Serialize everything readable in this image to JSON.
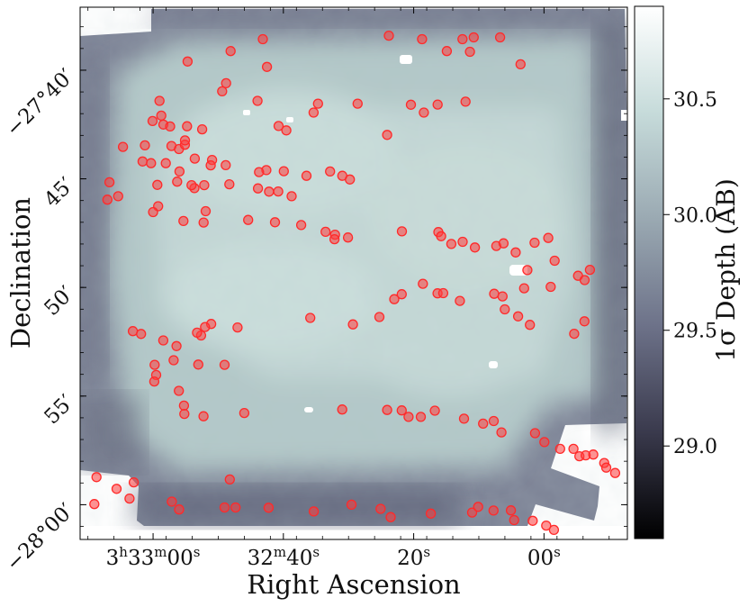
{
  "chart_data": {
    "type": "heatmap",
    "title": "",
    "xlabel": "Right Ascension",
    "ylabel": "Declination",
    "x_ticks": [
      {
        "ra_sec": 180,
        "label_parts": [
          "3",
          "h",
          "33",
          "m",
          "00",
          "s"
        ]
      },
      {
        "ra_sec": 160,
        "label_parts": [
          "32",
          "m",
          "40",
          "s"
        ]
      },
      {
        "ra_sec": 140,
        "label_parts": [
          "20",
          "s"
        ]
      },
      {
        "ra_sec": 120,
        "label_parts": [
          "00",
          "s"
        ]
      }
    ],
    "y_ticks": [
      {
        "dec_arcmin": -40,
        "label": "−27°40′"
      },
      {
        "dec_arcmin": -45,
        "label": "45′"
      },
      {
        "dec_arcmin": -50,
        "label": "50′"
      },
      {
        "dec_arcmin": -55,
        "label": "55′"
      },
      {
        "dec_arcmin": -60,
        "label": "−28°00′"
      }
    ],
    "xlim_ra_sec": [
      191.2,
      107.2
    ],
    "ylim_dec_arcmin": [
      -61.6,
      -37.1
    ],
    "colorbar": {
      "label": "1σ Depth (AB)",
      "range": [
        28.6,
        30.9
      ],
      "ticks": [
        29.0,
        29.5,
        30.0,
        30.5
      ],
      "tick_labels": [
        "29.0",
        "29.5",
        "30.0",
        "30.5"
      ],
      "colormap": "bone",
      "colors": [
        "#000000",
        "#3a3a4d",
        "#6d7289",
        "#9aa9b2",
        "#c6dbda",
        "#ffffff"
      ]
    },
    "marker_color": "#ff2a2a",
    "markers": [
      [
        163.16,
        -38.57
      ],
      [
        143.81,
        -38.41
      ],
      [
        138.71,
        -38.57
      ],
      [
        132.51,
        -38.57
      ],
      [
        130.79,
        -38.49
      ],
      [
        126.73,
        -38.49
      ],
      [
        174.71,
        -39.6
      ],
      [
        168.1,
        -39.12
      ],
      [
        162.52,
        -39.85
      ],
      [
        134.92,
        -39.12
      ],
      [
        131.37,
        -39.15
      ],
      [
        123.6,
        -39.73
      ],
      [
        168.79,
        -40.6
      ],
      [
        169.4,
        -40.97
      ],
      [
        163.97,
        -41.41
      ],
      [
        154.68,
        -41.54
      ],
      [
        148.61,
        -41.54
      ],
      [
        140.43,
        -41.59
      ],
      [
        136.32,
        -41.58
      ],
      [
        132.04,
        -41.45
      ],
      [
        179.01,
        -41.41
      ],
      [
        155.36,
        -41.95
      ],
      [
        138.44,
        -41.95
      ],
      [
        178.74,
        -42.09
      ],
      [
        180.08,
        -42.34
      ],
      [
        178.42,
        -42.5
      ],
      [
        160.73,
        -42.57
      ],
      [
        177.39,
        -42.59
      ],
      [
        174.79,
        -42.58
      ],
      [
        172.46,
        -42.72
      ],
      [
        159.55,
        -42.77
      ],
      [
        144.08,
        -42.98
      ],
      [
        181.25,
        -43.46
      ],
      [
        177.18,
        -43.49
      ],
      [
        176.03,
        -43.63
      ],
      [
        175.12,
        -43.43
      ],
      [
        184.62,
        -43.53
      ],
      [
        175.11,
        -43.23
      ],
      [
        181.61,
        -44.2
      ],
      [
        170.95,
        -44.13
      ],
      [
        173.6,
        -44.07
      ],
      [
        180.32,
        -44.28
      ],
      [
        178.05,
        -44.28
      ],
      [
        175.95,
        -44.66
      ],
      [
        168.85,
        -44.37
      ],
      [
        171.16,
        -44.38
      ],
      [
        162.62,
        -44.6
      ],
      [
        156.45,
        -44.86
      ],
      [
        159.94,
        -44.65
      ],
      [
        163.73,
        -44.69
      ],
      [
        152.84,
        -44.66
      ],
      [
        150.96,
        -44.86
      ],
      [
        149.8,
        -45.03
      ],
      [
        173.65,
        -45.43
      ],
      [
        174.1,
        -45.29
      ],
      [
        176.3,
        -45.13
      ],
      [
        179.35,
        -45.28
      ],
      [
        172.15,
        -45.29
      ],
      [
        168.29,
        -45.25
      ],
      [
        163.9,
        -45.44
      ],
      [
        162.2,
        -45.59
      ],
      [
        160.79,
        -45.58
      ],
      [
        158.73,
        -45.8
      ],
      [
        186.7,
        -45.16
      ],
      [
        185.35,
        -45.8
      ],
      [
        187.02,
        -45.96
      ],
      [
        179.22,
        -46.26
      ],
      [
        180.0,
        -46.53
      ],
      [
        171.93,
        -46.49
      ],
      [
        175.34,
        -46.94
      ],
      [
        172.25,
        -47.01
      ],
      [
        165.4,
        -46.89
      ],
      [
        161.29,
        -47.0
      ],
      [
        157.27,
        -47.13
      ],
      [
        153.52,
        -47.44
      ],
      [
        152.07,
        -47.57
      ],
      [
        152.16,
        -47.78
      ],
      [
        150.09,
        -47.7
      ],
      [
        141.81,
        -47.42
      ],
      [
        136.22,
        -47.45
      ],
      [
        135.79,
        -47.64
      ],
      [
        132.48,
        -47.9
      ],
      [
        134.23,
        -48.0
      ],
      [
        130.6,
        -48.16
      ],
      [
        127.32,
        -48.09
      ],
      [
        126.21,
        -47.97
      ],
      [
        119.34,
        -47.72
      ],
      [
        121.45,
        -47.94
      ],
      [
        124.34,
        -48.39
      ],
      [
        118.37,
        -48.77
      ],
      [
        122.55,
        -49.2
      ],
      [
        123.05,
        -50.04
      ],
      [
        118.97,
        -49.97
      ],
      [
        114.77,
        -49.46
      ],
      [
        113.76,
        -49.66
      ],
      [
        112.95,
        -49.19
      ],
      [
        138.59,
        -49.83
      ],
      [
        136.34,
        -50.27
      ],
      [
        135.47,
        -50.26
      ],
      [
        141.84,
        -50.31
      ],
      [
        142.98,
        -50.54
      ],
      [
        132.91,
        -50.62
      ],
      [
        127.65,
        -50.29
      ],
      [
        126.36,
        -50.41
      ],
      [
        126.02,
        -51.01
      ],
      [
        123.97,
        -51.33
      ],
      [
        122.16,
        -51.72
      ],
      [
        115.36,
        -52.13
      ],
      [
        113.79,
        -51.56
      ],
      [
        145.26,
        -51.36
      ],
      [
        149.33,
        -51.7
      ],
      [
        155.87,
        -51.4
      ],
      [
        167.03,
        -51.84
      ],
      [
        171.08,
        -51.68
      ],
      [
        172.02,
        -51.82
      ],
      [
        172.63,
        -52.21
      ],
      [
        173.25,
        -52.08
      ],
      [
        181.85,
        -52.14
      ],
      [
        183.11,
        -52.01
      ],
      [
        178.44,
        -52.44
      ],
      [
        176.4,
        -52.7
      ],
      [
        179.76,
        -53.56
      ],
      [
        176.84,
        -53.35
      ],
      [
        179.52,
        -54.03
      ],
      [
        173.06,
        -53.55
      ],
      [
        169.03,
        -53.56
      ],
      [
        179.81,
        -54.33
      ],
      [
        176.05,
        -54.76
      ],
      [
        175.25,
        -55.44
      ],
      [
        172.26,
        -55.93
      ],
      [
        175.2,
        -55.82
      ],
      [
        166.0,
        -55.78
      ],
      [
        150.97,
        -55.62
      ],
      [
        144.07,
        -55.64
      ],
      [
        141.84,
        -55.66
      ],
      [
        140.79,
        -55.96
      ],
      [
        138.91,
        -55.96
      ],
      [
        136.75,
        -55.67
      ],
      [
        132.28,
        -56.04
      ],
      [
        129.35,
        -56.27
      ],
      [
        127.72,
        -56.15
      ],
      [
        126.53,
        -56.67
      ],
      [
        121.38,
        -56.71
      ],
      [
        119.94,
        -57.12
      ],
      [
        117.52,
        -57.43
      ],
      [
        115.47,
        -57.43
      ],
      [
        114.56,
        -57.77
      ],
      [
        113.6,
        -57.73
      ],
      [
        112.43,
        -57.69
      ],
      [
        110.75,
        -58.08
      ],
      [
        110.44,
        -58.29
      ],
      [
        109.08,
        -58.54
      ],
      [
        168.23,
        -58.84
      ],
      [
        188.68,
        -58.73
      ],
      [
        182.96,
        -58.97
      ],
      [
        185.6,
        -59.27
      ],
      [
        183.62,
        -59.72
      ],
      [
        189.02,
        -59.97
      ],
      [
        177.12,
        -59.86
      ],
      [
        176.0,
        -60.22
      ],
      [
        169.02,
        -60.13
      ],
      [
        167.34,
        -60.13
      ],
      [
        162.27,
        -60.14
      ],
      [
        155.34,
        -60.31
      ],
      [
        149.55,
        -60.0
      ],
      [
        145.08,
        -60.19
      ],
      [
        143.53,
        -60.57
      ],
      [
        137.37,
        -60.41
      ],
      [
        131.03,
        -60.36
      ],
      [
        130.11,
        -60.1
      ],
      [
        127.75,
        -60.27
      ],
      [
        125.08,
        -60.26
      ],
      [
        124.58,
        -60.71
      ],
      [
        121.73,
        -60.74
      ],
      [
        119.66,
        -60.96
      ],
      [
        118.48,
        -61.16
      ]
    ]
  }
}
